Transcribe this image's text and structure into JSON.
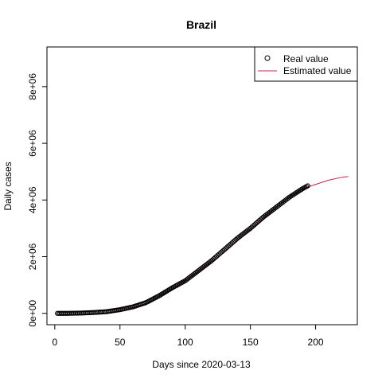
{
  "chart_data": {
    "type": "line",
    "title": "Brazil",
    "xlabel": "Days since 2020-03-13",
    "ylabel": "Daily cases",
    "xlim": [
      -6,
      232
    ],
    "ylim": [
      -400000,
      9400000
    ],
    "x_ticks": [
      0,
      50,
      100,
      150,
      200
    ],
    "x_tick_labels": [
      "0",
      "50",
      "100",
      "150",
      "200"
    ],
    "y_ticks": [
      0,
      2000000,
      4000000,
      6000000,
      8000000
    ],
    "y_tick_labels": [
      "0e+00",
      "2e+06",
      "4e+06",
      "6e+06",
      "8e+06"
    ],
    "grid": false,
    "legend_position": "top-right",
    "series": [
      {
        "name": "Real value",
        "style": "points",
        "marker": "open-circle",
        "color": "#000000",
        "x": [
          2,
          10,
          20,
          30,
          40,
          50,
          60,
          70,
          80,
          90,
          100,
          110,
          120,
          130,
          140,
          150,
          160,
          170,
          180,
          190,
          194
        ],
        "y": [
          0,
          0,
          10000,
          30000,
          60000,
          130000,
          230000,
          380000,
          620000,
          900000,
          1150000,
          1500000,
          1850000,
          2250000,
          2650000,
          3000000,
          3400000,
          3750000,
          4100000,
          4400000,
          4500000
        ]
      },
      {
        "name": "Estimated value",
        "style": "line",
        "color": "#cc2244",
        "x": [
          2,
          10,
          20,
          30,
          40,
          50,
          60,
          70,
          80,
          90,
          100,
          110,
          120,
          130,
          140,
          150,
          160,
          170,
          180,
          190,
          200,
          210,
          220,
          225
        ],
        "y": [
          40000,
          40000,
          50000,
          70000,
          100000,
          150000,
          220000,
          350000,
          600000,
          850000,
          1150000,
          1450000,
          1800000,
          2150000,
          2550000,
          2950000,
          3350000,
          3750000,
          4100000,
          4400000,
          4550000,
          4700000,
          4800000,
          4830000
        ]
      }
    ]
  }
}
